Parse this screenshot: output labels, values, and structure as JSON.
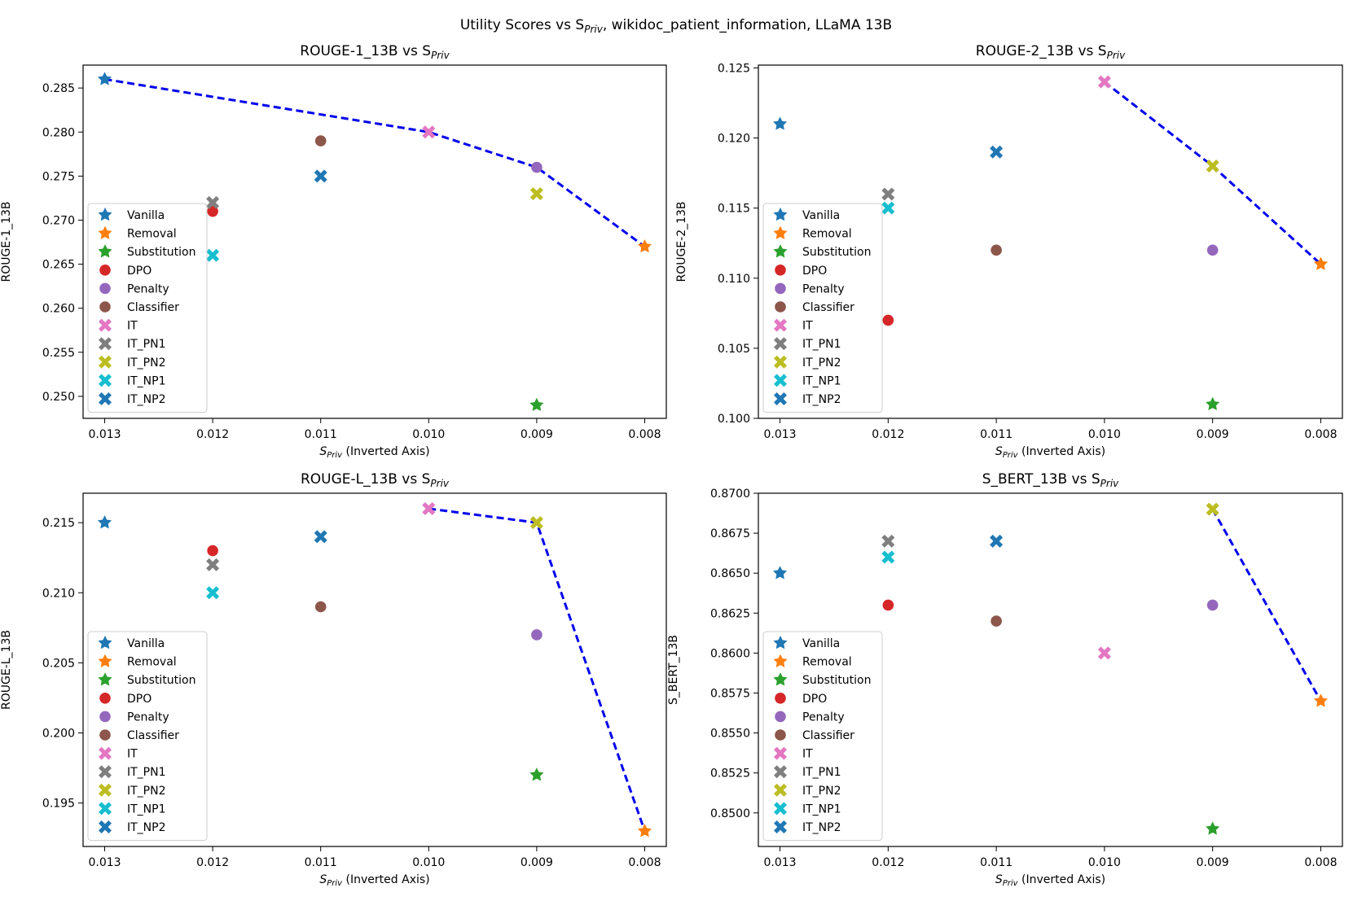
{
  "figure": {
    "suptitle": "Utility Scores vs S",
    "suptitle_sub": "Priv",
    "suptitle_rest": ", wikidoc_patient_information, LLaMA 13B"
  },
  "colors": {
    "Vanilla": "#1f77b4",
    "Removal": "#ff7f0e",
    "Substitution": "#2ca02c",
    "DPO": "#d62728",
    "Penalty": "#9467bd",
    "Classifier": "#8c564b",
    "IT": "#e377c2",
    "IT_PN1": "#7f7f7f",
    "IT_PN2": "#bcbd22",
    "IT_NP1": "#17becf",
    "IT_NP2": "#1f77b4",
    "frontier": "#0000ee"
  },
  "legend": {
    "entries": [
      {
        "label": "Vanilla",
        "marker": "star"
      },
      {
        "label": "Removal",
        "marker": "star"
      },
      {
        "label": "Substitution",
        "marker": "star"
      },
      {
        "label": "DPO",
        "marker": "circle"
      },
      {
        "label": "Penalty",
        "marker": "circle"
      },
      {
        "label": "Classifier",
        "marker": "circle"
      },
      {
        "label": "IT",
        "marker": "x"
      },
      {
        "label": "IT_PN1",
        "marker": "x"
      },
      {
        "label": "IT_PN2",
        "marker": "x"
      },
      {
        "label": "IT_NP1",
        "marker": "x"
      },
      {
        "label": "IT_NP2",
        "marker": "x"
      }
    ]
  },
  "chart_data": [
    {
      "type": "scatter",
      "title": "ROUGE-1_13B vs S",
      "title_sub": "Priv",
      "xlabel": "S",
      "xlabel_sub": "Priv",
      "xlabel_rest": " (Inverted Axis)",
      "ylabel": "ROUGE-1_13B",
      "xlim": [
        0.0132,
        0.0078
      ],
      "ylim": [
        0.2475,
        0.2876
      ],
      "xticks": [
        0.013,
        0.012,
        0.011,
        0.01,
        0.009,
        0.008
      ],
      "xtick_labels": [
        "0.013",
        "0.012",
        "0.011",
        "0.010",
        "0.009",
        "0.008"
      ],
      "yticks": [
        0.25,
        0.255,
        0.26,
        0.265,
        0.27,
        0.275,
        0.28,
        0.285
      ],
      "ytick_labels": [
        "0.250",
        "0.255",
        "0.260",
        "0.265",
        "0.270",
        "0.275",
        "0.280",
        "0.285"
      ],
      "points": [
        {
          "series": "Vanilla",
          "x": 0.013,
          "y": 0.286
        },
        {
          "series": "Removal",
          "x": 0.008,
          "y": 0.267
        },
        {
          "series": "Substitution",
          "x": 0.009,
          "y": 0.249
        },
        {
          "series": "DPO",
          "x": 0.012,
          "y": 0.271
        },
        {
          "series": "Penalty",
          "x": 0.009,
          "y": 0.276
        },
        {
          "series": "Classifier",
          "x": 0.011,
          "y": 0.279
        },
        {
          "series": "IT",
          "x": 0.01,
          "y": 0.28
        },
        {
          "series": "IT_PN1",
          "x": 0.012,
          "y": 0.272
        },
        {
          "series": "IT_PN2",
          "x": 0.009,
          "y": 0.273
        },
        {
          "series": "IT_NP1",
          "x": 0.012,
          "y": 0.266
        },
        {
          "series": "IT_NP2",
          "x": 0.011,
          "y": 0.275
        }
      ],
      "frontier": [
        [
          0.013,
          0.286
        ],
        [
          0.01,
          0.28
        ],
        [
          0.009,
          0.276
        ],
        [
          0.008,
          0.267
        ]
      ],
      "legend_position": "center-left"
    },
    {
      "type": "scatter",
      "title": "ROUGE-2_13B vs S",
      "title_sub": "Priv",
      "xlabel": "S",
      "xlabel_sub": "Priv",
      "xlabel_rest": " (Inverted Axis)",
      "ylabel": "ROUGE-2_13B",
      "xlim": [
        0.0132,
        0.0078
      ],
      "ylim": [
        0.1,
        0.1252
      ],
      "xticks": [
        0.013,
        0.012,
        0.011,
        0.01,
        0.009,
        0.008
      ],
      "xtick_labels": [
        "0.013",
        "0.012",
        "0.011",
        "0.010",
        "0.009",
        "0.008"
      ],
      "yticks": [
        0.1,
        0.105,
        0.11,
        0.115,
        0.12,
        0.125
      ],
      "ytick_labels": [
        "0.100",
        "0.105",
        "0.110",
        "0.115",
        "0.120",
        "0.125"
      ],
      "points": [
        {
          "series": "Vanilla",
          "x": 0.013,
          "y": 0.121
        },
        {
          "series": "Removal",
          "x": 0.008,
          "y": 0.111
        },
        {
          "series": "Substitution",
          "x": 0.009,
          "y": 0.101
        },
        {
          "series": "DPO",
          "x": 0.012,
          "y": 0.107
        },
        {
          "series": "Penalty",
          "x": 0.009,
          "y": 0.112
        },
        {
          "series": "Classifier",
          "x": 0.011,
          "y": 0.112
        },
        {
          "series": "IT",
          "x": 0.01,
          "y": 0.124
        },
        {
          "series": "IT_PN1",
          "x": 0.012,
          "y": 0.116
        },
        {
          "series": "IT_PN2",
          "x": 0.009,
          "y": 0.118
        },
        {
          "series": "IT_NP1",
          "x": 0.012,
          "y": 0.115
        },
        {
          "series": "IT_NP2",
          "x": 0.011,
          "y": 0.119
        }
      ],
      "frontier": [
        [
          0.01,
          0.124
        ],
        [
          0.009,
          0.118
        ],
        [
          0.008,
          0.111
        ]
      ],
      "legend_position": "center-left"
    },
    {
      "type": "scatter",
      "title": "ROUGE-L_13B vs S",
      "title_sub": "Priv",
      "xlabel": "S",
      "xlabel_sub": "Priv",
      "xlabel_rest": " (Inverted Axis)",
      "ylabel": "ROUGE-L_13B",
      "xlim": [
        0.0132,
        0.0078
      ],
      "ylim": [
        0.1919,
        0.2171
      ],
      "xticks": [
        0.013,
        0.012,
        0.011,
        0.01,
        0.009,
        0.008
      ],
      "xtick_labels": [
        "0.013",
        "0.012",
        "0.011",
        "0.010",
        "0.009",
        "0.008"
      ],
      "yticks": [
        0.195,
        0.2,
        0.205,
        0.21,
        0.215
      ],
      "ytick_labels": [
        "0.195",
        "0.200",
        "0.205",
        "0.210",
        "0.215"
      ],
      "points": [
        {
          "series": "Vanilla",
          "x": 0.013,
          "y": 0.215
        },
        {
          "series": "Removal",
          "x": 0.008,
          "y": 0.193
        },
        {
          "series": "Substitution",
          "x": 0.009,
          "y": 0.197
        },
        {
          "series": "DPO",
          "x": 0.012,
          "y": 0.213
        },
        {
          "series": "Penalty",
          "x": 0.009,
          "y": 0.207
        },
        {
          "series": "Classifier",
          "x": 0.011,
          "y": 0.209
        },
        {
          "series": "IT",
          "x": 0.01,
          "y": 0.216
        },
        {
          "series": "IT_PN1",
          "x": 0.012,
          "y": 0.212
        },
        {
          "series": "IT_PN2",
          "x": 0.009,
          "y": 0.215
        },
        {
          "series": "IT_NP1",
          "x": 0.012,
          "y": 0.21
        },
        {
          "series": "IT_NP2",
          "x": 0.011,
          "y": 0.214
        }
      ],
      "frontier": [
        [
          0.01,
          0.216
        ],
        [
          0.009,
          0.215
        ],
        [
          0.008,
          0.193
        ]
      ],
      "legend_position": "center-left"
    },
    {
      "type": "scatter",
      "title": "S_BERT_13B vs S",
      "title_sub": "Priv",
      "xlabel": "S",
      "xlabel_sub": "Priv",
      "xlabel_rest": " (Inverted Axis)",
      "ylabel": "S_BERT_13B",
      "xlim": [
        0.0132,
        0.0078
      ],
      "ylim": [
        0.8479,
        0.87
      ],
      "xticks": [
        0.013,
        0.012,
        0.011,
        0.01,
        0.009,
        0.008
      ],
      "xtick_labels": [
        "0.013",
        "0.012",
        "0.011",
        "0.010",
        "0.009",
        "0.008"
      ],
      "yticks": [
        0.85,
        0.8525,
        0.855,
        0.8575,
        0.86,
        0.8625,
        0.865,
        0.8675,
        0.87
      ],
      "ytick_labels": [
        "0.8500",
        "0.8525",
        "0.8550",
        "0.8575",
        "0.8600",
        "0.8625",
        "0.8650",
        "0.8675",
        "0.8700"
      ],
      "points": [
        {
          "series": "Vanilla",
          "x": 0.013,
          "y": 0.865
        },
        {
          "series": "Removal",
          "x": 0.008,
          "y": 0.857
        },
        {
          "series": "Substitution",
          "x": 0.009,
          "y": 0.849
        },
        {
          "series": "DPO",
          "x": 0.012,
          "y": 0.863
        },
        {
          "series": "Penalty",
          "x": 0.009,
          "y": 0.863
        },
        {
          "series": "Classifier",
          "x": 0.011,
          "y": 0.862
        },
        {
          "series": "IT",
          "x": 0.01,
          "y": 0.86
        },
        {
          "series": "IT_PN1",
          "x": 0.012,
          "y": 0.867
        },
        {
          "series": "IT_PN2",
          "x": 0.009,
          "y": 0.869
        },
        {
          "series": "IT_NP1",
          "x": 0.012,
          "y": 0.866
        },
        {
          "series": "IT_NP2",
          "x": 0.011,
          "y": 0.867
        }
      ],
      "frontier": [
        [
          0.009,
          0.869
        ],
        [
          0.008,
          0.857
        ]
      ],
      "legend_position": "center-left"
    }
  ]
}
